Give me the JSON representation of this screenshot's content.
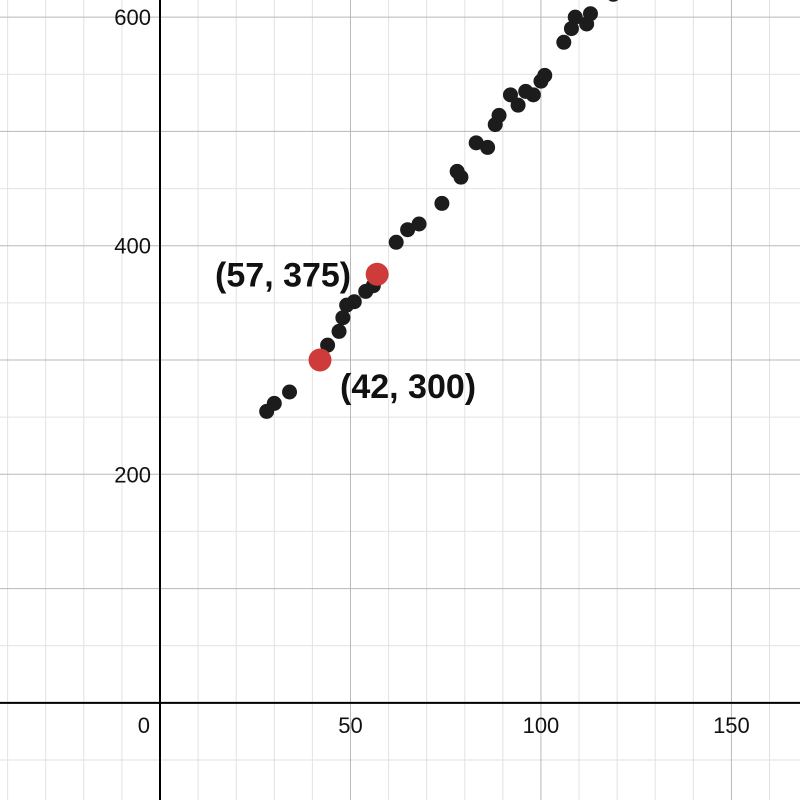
{
  "chart_data": {
    "type": "scatter",
    "title": "",
    "xlabel": "",
    "ylabel": "",
    "xlim": [
      -42,
      168
    ],
    "ylim": [
      -85,
      615
    ],
    "grid": true,
    "minor_grid": true,
    "x_ticks": [
      0,
      50,
      100,
      150
    ],
    "y_ticks": [
      200,
      400,
      600
    ],
    "colors": {
      "data_points": "#1c1c1c",
      "highlight_points": "#cf3b3b",
      "major_grid": "#b8b8b8",
      "minor_grid": "#e2e2e2",
      "axis": "#000000"
    },
    "series": [
      {
        "points": [
          [
            28,
            255
          ],
          [
            30,
            262
          ],
          [
            34,
            272
          ],
          [
            44,
            313
          ],
          [
            47,
            325
          ],
          [
            48,
            337
          ],
          [
            49,
            348
          ],
          [
            51,
            351
          ],
          [
            54,
            360
          ],
          [
            56,
            365
          ],
          [
            62,
            403
          ],
          [
            65,
            414
          ],
          [
            68,
            419
          ],
          [
            74,
            437
          ],
          [
            78,
            465
          ],
          [
            79,
            460
          ],
          [
            83,
            490
          ],
          [
            86,
            486
          ],
          [
            88,
            506
          ],
          [
            89,
            514
          ],
          [
            92,
            532
          ],
          [
            94,
            523
          ],
          [
            96,
            535
          ],
          [
            98,
            532
          ],
          [
            100,
            544
          ],
          [
            101,
            549
          ],
          [
            106,
            578
          ],
          [
            108,
            590
          ],
          [
            109,
            600
          ],
          [
            112,
            594
          ],
          [
            113,
            603
          ],
          [
            119,
            620
          ]
        ]
      }
    ],
    "highlighted": [
      {
        "x": 57,
        "y": 375,
        "label": "(57, 375)",
        "label_side": "left"
      },
      {
        "x": 42,
        "y": 300,
        "label": "(42, 300)",
        "label_side": "right"
      }
    ]
  }
}
